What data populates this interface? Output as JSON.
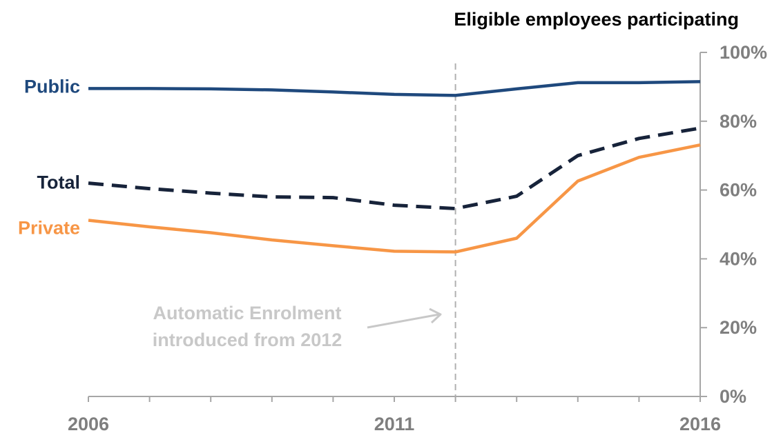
{
  "chart_data": {
    "type": "line",
    "ylabel": "Eligible employees participating",
    "x": [
      2006,
      2007,
      2008,
      2009,
      2010,
      2011,
      2012,
      2013,
      2014,
      2015,
      2016
    ],
    "x_tick_labels": [
      "2006",
      "2011",
      "2016"
    ],
    "x_tick_positions": [
      2006,
      2011,
      2016
    ],
    "xlim": [
      2006,
      2016
    ],
    "ylim": [
      0,
      100
    ],
    "y_ticks": [
      0,
      20,
      40,
      60,
      80,
      100
    ],
    "y_tick_labels": [
      "0%",
      "20%",
      "40%",
      "60%",
      "80%",
      "100%"
    ],
    "y_axis_side": "right",
    "grid": false,
    "legend": "inline-left",
    "series": [
      {
        "name": "Public",
        "color": "#1f497d",
        "style": "solid",
        "values": [
          89.5,
          89.5,
          89.4,
          89.1,
          88.5,
          87.8,
          87.5,
          89.4,
          91.2,
          91.2,
          91.5
        ]
      },
      {
        "name": "Total",
        "color": "#17233a",
        "style": "dashed",
        "values": [
          62,
          60.4,
          59.1,
          58,
          57.8,
          55.6,
          54.6,
          58.2,
          70,
          75,
          78
        ]
      },
      {
        "name": "Private",
        "color": "#f79646",
        "style": "solid",
        "values": [
          51.2,
          49.3,
          47.6,
          45.5,
          43.8,
          42.2,
          42,
          46,
          62.6,
          69.5,
          73.1
        ]
      }
    ],
    "reference_line": {
      "x": 2012,
      "color": "#b0b0b0",
      "style": "dashed"
    },
    "annotation": {
      "lines": [
        "Automatic Enrolment",
        "introduced from 2012"
      ],
      "color": "#c8c8c8"
    }
  }
}
